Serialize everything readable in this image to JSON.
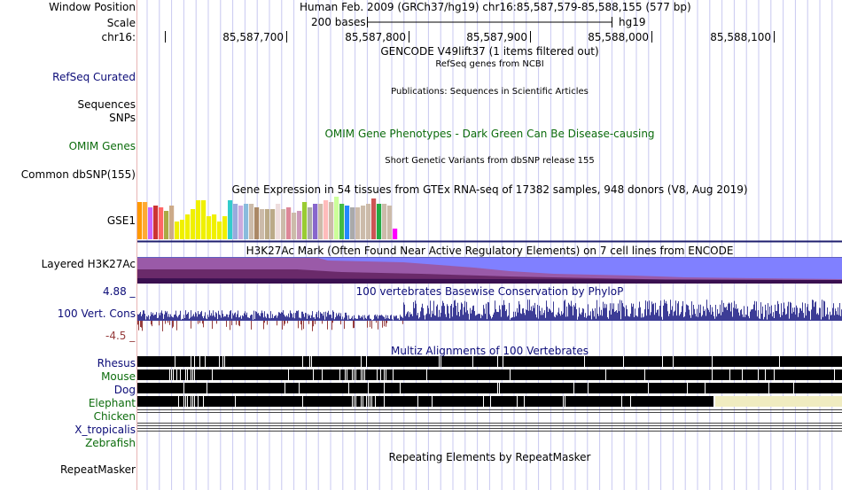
{
  "colors": {
    "divider": "#e8b4b4",
    "gridline": "#c8c8f0",
    "blue_label": "#0c0c78",
    "green_label": "#0c6c0c",
    "conservation": "#3c3c96",
    "conservation_negative": "#963c3c",
    "elephant_gap": "#f0ecc0",
    "h3k27ac_fill": "#8080ff",
    "h3k27ac_dark": "#6a2a6a"
  },
  "header": {
    "window_position_label": "Window Position",
    "window_position_value": "Human Feb. 2009 (GRCh37/hg19)   chr16:85,587,579-85,588,155 (577 bp)",
    "scale_label": "Scale",
    "scale_value": "200 bases",
    "assembly": "hg19",
    "chrom_label": "chr16:",
    "ticks": [
      "85,587,700",
      "85,587,800",
      "85,587,900",
      "85,588,000",
      "85,588,100"
    ]
  },
  "tracks": {
    "gencode_title": "GENCODE V49lift37 (1 items filtered out)",
    "refseq_label": "RefSeq Curated",
    "refseq_title": "RefSeq genes from NCBI",
    "publications_title": "Publications: Sequences in Scientific Articles",
    "sequences_label": "Sequences",
    "snps_label": "SNPs",
    "omim_label": "OMIM Genes",
    "omim_title": "OMIM Gene Phenotypes - Dark Green Can Be Disease-causing",
    "dbsnp_title": "Short Genetic Variants from dbSNP release 155",
    "dbsnp_label": "Common dbSNP(155)",
    "gtex_title": "Gene Expression in 54 tissues from GTEx RNA-seq of 17382 samples, 948 donors (V8, Aug 2019)",
    "gtex_label": "GSE1",
    "h3k27ac_label": "Layered H3K27Ac",
    "h3k27ac_title": "H3K27Ac Mark (Often Found Near Active Regulatory Elements) on 7 cell lines from ENCODE",
    "cons_label": "100 Vert. Cons",
    "cons_max": "4.88 _",
    "cons_min": "-4.5 _",
    "cons_title": "100 vertebrates Basewise Conservation by PhyloP",
    "multiz_title": "Multiz Alignments of 100 Vertebrates",
    "species": [
      {
        "name": "Rhesus",
        "color": "#0c0c78"
      },
      {
        "name": "Mouse",
        "color": "#0c6c0c"
      },
      {
        "name": "Dog",
        "color": "#0c0c78"
      },
      {
        "name": "Elephant",
        "color": "#0c6c0c"
      },
      {
        "name": "Chicken",
        "color": "#0c6c0c"
      },
      {
        "name": "X_tropicalis",
        "color": "#0c0c78"
      },
      {
        "name": "Zebrafish",
        "color": "#0c6c0c"
      }
    ],
    "repeat_label": "RepeatMasker",
    "repeat_title": "Repeating Elements by RepeatMasker"
  },
  "gtex_colors": [
    "#ff9900",
    "#ffaa33",
    "#cc66ff",
    "#cc3333",
    "#ff6666",
    "#aaaa44",
    "#ccaa88",
    "#f0f000",
    "#f0f000",
    "#f0f000",
    "#f0f000",
    "#f0f000",
    "#f0f000",
    "#f0f000",
    "#f0f000",
    "#f0f000",
    "#f0f000",
    "#33cccc",
    "#99aadd",
    "#ccaadd",
    "#88bbdd",
    "#ccbbaa",
    "#aa8866",
    "#ccbbaa",
    "#bbaa88",
    "#bbaa88",
    "#eedddd",
    "#ccbbaa",
    "#dd8899",
    "#ccbbaa",
    "#cc99bb",
    "#99cc33",
    "#aaaaaa",
    "#8866cc",
    "#ccbbaa",
    "#ffbbbb",
    "#ccbbaa",
    "#ccff99",
    "#44bb44",
    "#2288ff",
    "#aaaaaa",
    "#ccbbaa",
    "#ccbbaa",
    "#ccbbaa",
    "#cc5555",
    "#22aa44",
    "#ccbbaa",
    "#ccbbaa",
    "#ff00ff"
  ],
  "gtex_values": [
    42,
    42,
    36,
    38,
    36,
    32,
    38,
    20,
    22,
    28,
    34,
    44,
    44,
    26,
    28,
    20,
    26,
    44,
    40,
    38,
    40,
    40,
    36,
    34,
    34,
    34,
    40,
    34,
    36,
    30,
    32,
    42,
    36,
    40,
    40,
    44,
    42,
    48,
    40,
    38,
    36,
    36,
    38,
    40,
    46,
    40,
    40,
    38,
    12
  ]
}
